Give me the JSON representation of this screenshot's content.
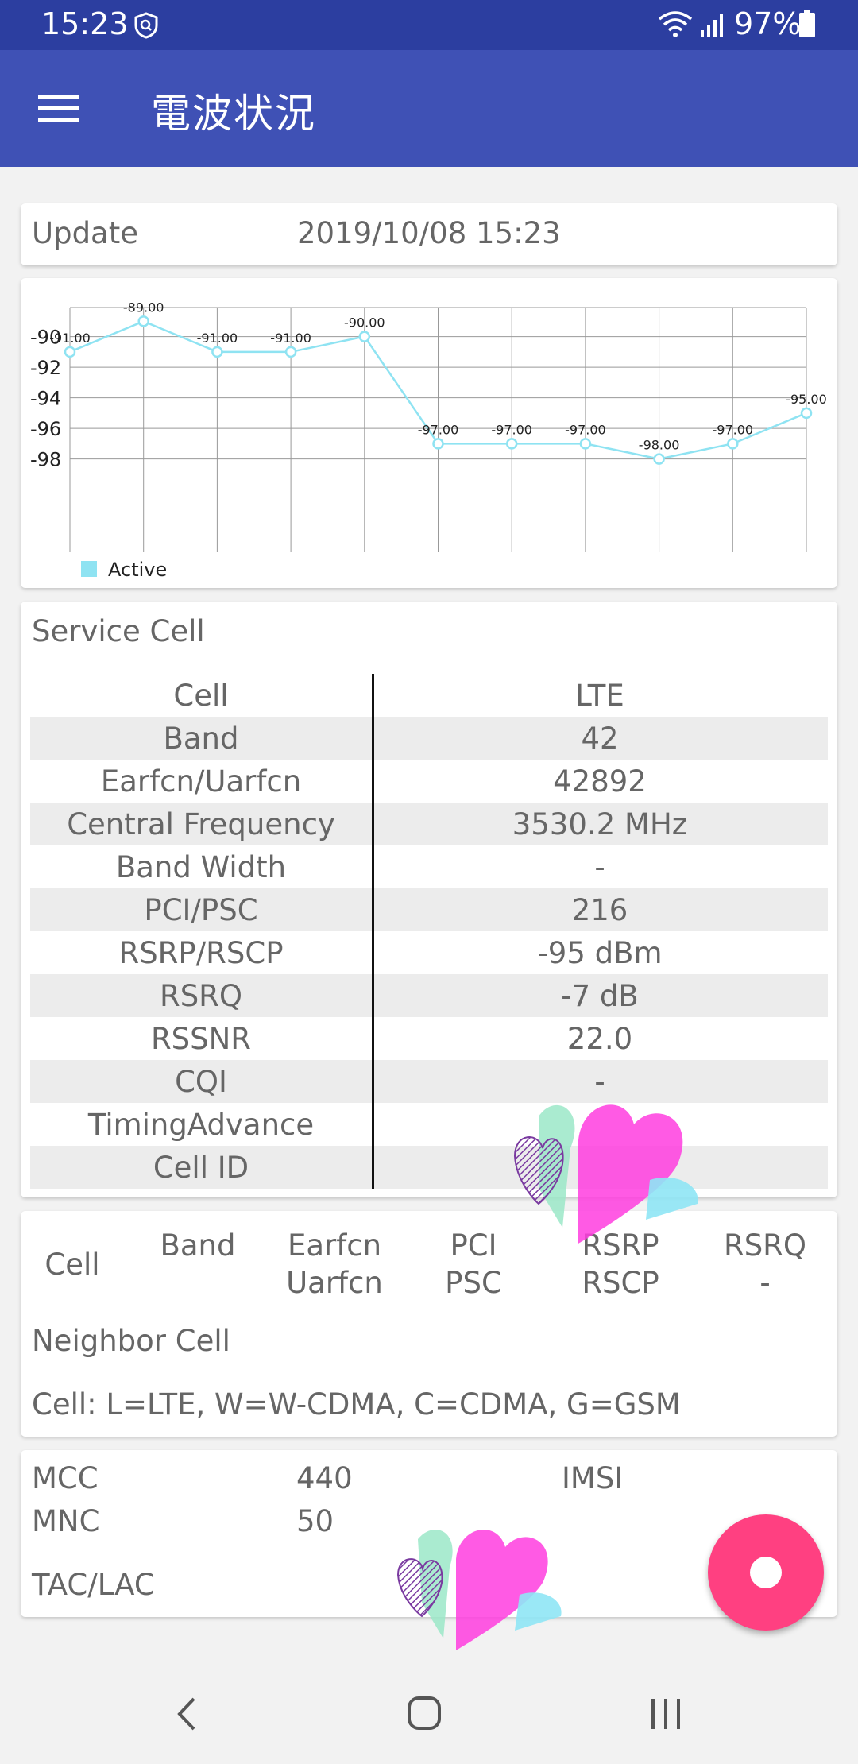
{
  "status_bar": {
    "time": "15:23",
    "battery": "97%",
    "icons": [
      "shield-icon",
      "wifi-icon",
      "signal-icon",
      "battery-icon"
    ]
  },
  "app_bar": {
    "title": "電波状況",
    "menu_icon": "menu-icon"
  },
  "update": {
    "label": "Update",
    "value": "2019/10/08 15:23"
  },
  "chart_data": {
    "type": "line",
    "x": [
      1,
      2,
      3,
      4,
      5,
      6,
      7,
      8,
      9,
      10,
      11
    ],
    "series": [
      {
        "name": "Active",
        "values": [
          -91,
          -89,
          -91,
          -91,
          -90,
          -97,
          -97,
          -97,
          -98,
          -97,
          -95
        ],
        "labels": [
          "-91.00",
          "-89.00",
          "-91.00",
          "-91.00",
          "-90.00",
          "-97.00",
          "-97.00",
          "-97.00",
          "-98.00",
          "-97.00",
          "-95.00"
        ]
      }
    ],
    "yticks": [
      "-90",
      "-92",
      "-94",
      "-96",
      "-98"
    ],
    "ylim": [
      -98.8,
      -88.1
    ],
    "grid": true,
    "legend": "bottom-left",
    "color": "#8fe3f2"
  },
  "service_cell": {
    "title": "Service Cell",
    "rows": [
      {
        "label": "Cell",
        "value": "LTE"
      },
      {
        "label": "Band",
        "value": "42"
      },
      {
        "label": "Earfcn/Uarfcn",
        "value": "42892"
      },
      {
        "label": "Central Frequency",
        "value": "3530.2 MHz"
      },
      {
        "label": "Band Width",
        "value": "-"
      },
      {
        "label": "PCI/PSC",
        "value": "216"
      },
      {
        "label": "RSRP/RSCP",
        "value": "-95 dBm"
      },
      {
        "label": "RSRQ",
        "value": "-7 dB"
      },
      {
        "label": "RSSNR",
        "value": "22.0"
      },
      {
        "label": "CQI",
        "value": "-"
      },
      {
        "label": "TimingAdvance",
        "value": ""
      },
      {
        "label": "Cell ID",
        "value": ""
      }
    ]
  },
  "neighbor_cell": {
    "headers": [
      {
        "l1": "Cell",
        "l2": ""
      },
      {
        "l1": "Band",
        "l2": ""
      },
      {
        "l1": "Earfcn",
        "l2": "Uarfcn"
      },
      {
        "l1": "PCI",
        "l2": "PSC"
      },
      {
        "l1": "RSRP",
        "l2": "RSCP"
      },
      {
        "l1": "RSRQ",
        "l2": "-"
      }
    ],
    "title": "Neighbor Cell",
    "legend": "Cell: L=LTE, W=W-CDMA, C=CDMA, G=GSM"
  },
  "network_info": {
    "mcc_label": "MCC",
    "mcc_value": "440",
    "mnc_label": "MNC",
    "mnc_value": "50",
    "imsi_label": "IMSI",
    "tac_label": "TAC/LAC"
  },
  "fab": {
    "icon": "record-icon",
    "color": "#ff4081"
  },
  "nav_bar": {
    "icons": [
      "back-icon",
      "home-icon",
      "recent-apps-icon"
    ]
  }
}
